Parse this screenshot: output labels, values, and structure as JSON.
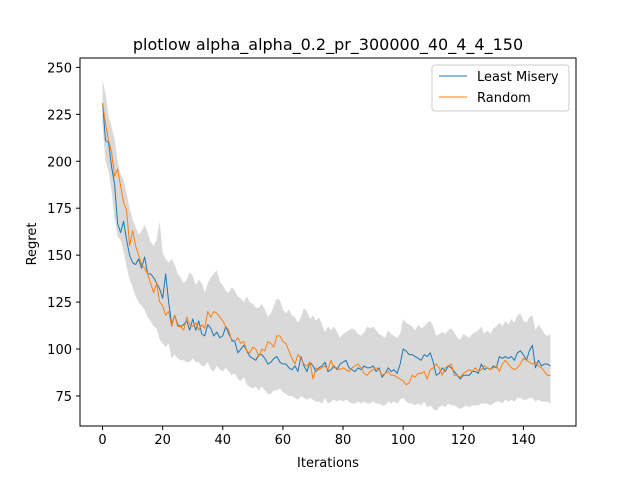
{
  "chart_data": {
    "type": "line",
    "title": "plotlow alpha_alpha_0.2_pr_300000_40_4_4_150",
    "xlabel": "Iterations",
    "ylabel": "Regret",
    "xlim": [
      -7.5,
      157.5
    ],
    "ylim": [
      59,
      255
    ],
    "xticks": [
      0,
      20,
      40,
      60,
      80,
      100,
      120,
      140
    ],
    "xtick_labels": [
      "0",
      "20",
      "40",
      "60",
      "80",
      "100",
      "120",
      "140"
    ],
    "yticks": [
      75,
      100,
      125,
      150,
      175,
      200,
      225,
      250
    ],
    "ytick_labels": [
      "75",
      "100",
      "125",
      "150",
      "175",
      "200",
      "225",
      "250"
    ],
    "grid": false,
    "legend_position": "top-right",
    "series": [
      {
        "name": "Least Misery",
        "color": "#1f77b4",
        "x_start": 0,
        "values": [
          231,
          211,
          210,
          197,
          188,
          167,
          162,
          168,
          158,
          150,
          146,
          145,
          148,
          143,
          149,
          140,
          140,
          138,
          135,
          132,
          127,
          140,
          125,
          113,
          118,
          113,
          112,
          113,
          115,
          110,
          116,
          110,
          115,
          108,
          107,
          113,
          111,
          107,
          109,
          106,
          107,
          112,
          108,
          105,
          104,
          98,
          100,
          102,
          99,
          96,
          95,
          94,
          97,
          97,
          95,
          92,
          93,
          95,
          96,
          93,
          92,
          92,
          90,
          89,
          91,
          88,
          96,
          91,
          88,
          93,
          91,
          88,
          90,
          91,
          93,
          88,
          89,
          91,
          89,
          92,
          93,
          94,
          90,
          89,
          88,
          90,
          89,
          91,
          90,
          90,
          91,
          88,
          90,
          85,
          87,
          90,
          88,
          89,
          87,
          92,
          100,
          99,
          97,
          97,
          96,
          95,
          94,
          97,
          96,
          98,
          93,
          86,
          87,
          90,
          88,
          91,
          90,
          88,
          86,
          84,
          86,
          86,
          86,
          88,
          88,
          87,
          92,
          89,
          90,
          89,
          91,
          90,
          96,
          95,
          96,
          95,
          96,
          94,
          98,
          99,
          97,
          94,
          99,
          102,
          90,
          94,
          91,
          92,
          92,
          91
        ]
      },
      {
        "name": "Random",
        "color": "#ff7f0e",
        "x_start": 0,
        "values": [
          231,
          220,
          211,
          205,
          192,
          196,
          187,
          178,
          174,
          155,
          163,
          155,
          150,
          145,
          143,
          140,
          135,
          130,
          135,
          125,
          123,
          118,
          120,
          112,
          118,
          112,
          112,
          110,
          117,
          113,
          112,
          114,
          110,
          113,
          111,
          120,
          117,
          120,
          119,
          117,
          115,
          112,
          110,
          104,
          104,
          106,
          103,
          104,
          99,
          98,
          101,
          100,
          96,
          100,
          99,
          104,
          103,
          101,
          107,
          107,
          104,
          103,
          99,
          95,
          92,
          97,
          95,
          92,
          91,
          93,
          84,
          90,
          89,
          90,
          91,
          89,
          94,
          90,
          90,
          89,
          90,
          89,
          88,
          90,
          91,
          92,
          90,
          87,
          86,
          88,
          89,
          90,
          89,
          86,
          87,
          88,
          86,
          86,
          85,
          84,
          83,
          81,
          82,
          86,
          85,
          87,
          87,
          88,
          84,
          89,
          90,
          92,
          90,
          86,
          90,
          91,
          92,
          86,
          86,
          85,
          87,
          88,
          89,
          88,
          90,
          88,
          89,
          91,
          90,
          89,
          90,
          91,
          88,
          92,
          94,
          92,
          90,
          89,
          90,
          92,
          95,
          94,
          93,
          92,
          93,
          91,
          90,
          88,
          86,
          86
        ]
      }
    ],
    "band": {
      "color": "#d9d9d9",
      "upper": [
        243,
        236,
        224,
        218,
        212,
        200,
        193,
        190,
        183,
        175,
        169,
        165,
        161,
        163,
        166,
        162,
        157,
        155,
        158,
        168,
        151,
        148,
        146,
        148,
        145,
        140,
        138,
        135,
        137,
        141,
        139,
        134,
        137,
        135,
        130,
        135,
        138,
        140,
        142,
        136,
        134,
        131,
        130,
        133,
        131,
        128,
        127,
        125,
        128,
        125,
        124,
        122,
        122,
        124,
        121,
        117,
        119,
        123,
        127,
        126,
        121,
        119,
        121,
        118,
        117,
        114,
        117,
        122,
        120,
        116,
        118,
        115,
        117,
        113,
        109,
        112,
        110,
        112,
        109,
        106,
        108,
        109,
        110,
        111,
        110,
        108,
        107,
        109,
        112,
        111,
        112,
        110,
        108,
        107,
        106,
        110,
        108,
        107,
        106,
        108,
        116,
        114,
        113,
        112,
        110,
        113,
        111,
        112,
        114,
        115,
        112,
        107,
        108,
        109,
        108,
        110,
        111,
        109,
        106,
        105,
        108,
        107,
        106,
        108,
        109,
        110,
        112,
        108,
        110,
        108,
        111,
        112,
        114,
        112,
        115,
        113,
        116,
        114,
        118,
        119,
        115,
        114,
        117,
        118,
        110,
        113,
        111,
        108,
        107,
        108
      ],
      "lower": [
        219,
        200,
        195,
        184,
        170,
        160,
        158,
        152,
        144,
        137,
        133,
        128,
        125,
        123,
        121,
        117,
        115,
        112,
        111,
        105,
        103,
        101,
        103,
        95,
        97,
        95,
        94,
        94,
        93,
        93,
        95,
        93,
        93,
        91,
        91,
        93,
        89,
        88,
        91,
        89,
        88,
        90,
        88,
        86,
        87,
        84,
        83,
        85,
        81,
        80,
        79,
        80,
        78,
        80,
        78,
        76,
        76,
        78,
        78,
        79,
        77,
        76,
        75,
        75,
        74,
        73,
        75,
        74,
        73,
        74,
        73,
        72,
        72,
        71,
        74,
        71,
        72,
        73,
        72,
        73,
        72,
        73,
        72,
        71,
        71,
        72,
        71,
        72,
        71,
        71,
        72,
        71,
        71,
        70,
        70,
        72,
        71,
        72,
        71,
        73,
        74,
        72,
        71,
        71,
        70,
        71,
        70,
        72,
        69,
        70,
        68,
        67,
        69,
        70,
        69,
        71,
        70,
        70,
        69,
        68,
        69,
        70,
        69,
        70,
        70,
        70,
        71,
        71,
        71,
        70,
        71,
        72,
        72,
        71,
        73,
        72,
        73,
        72,
        74,
        74,
        73,
        73,
        74,
        74,
        72,
        73,
        72,
        72,
        72,
        71
      ]
    }
  }
}
